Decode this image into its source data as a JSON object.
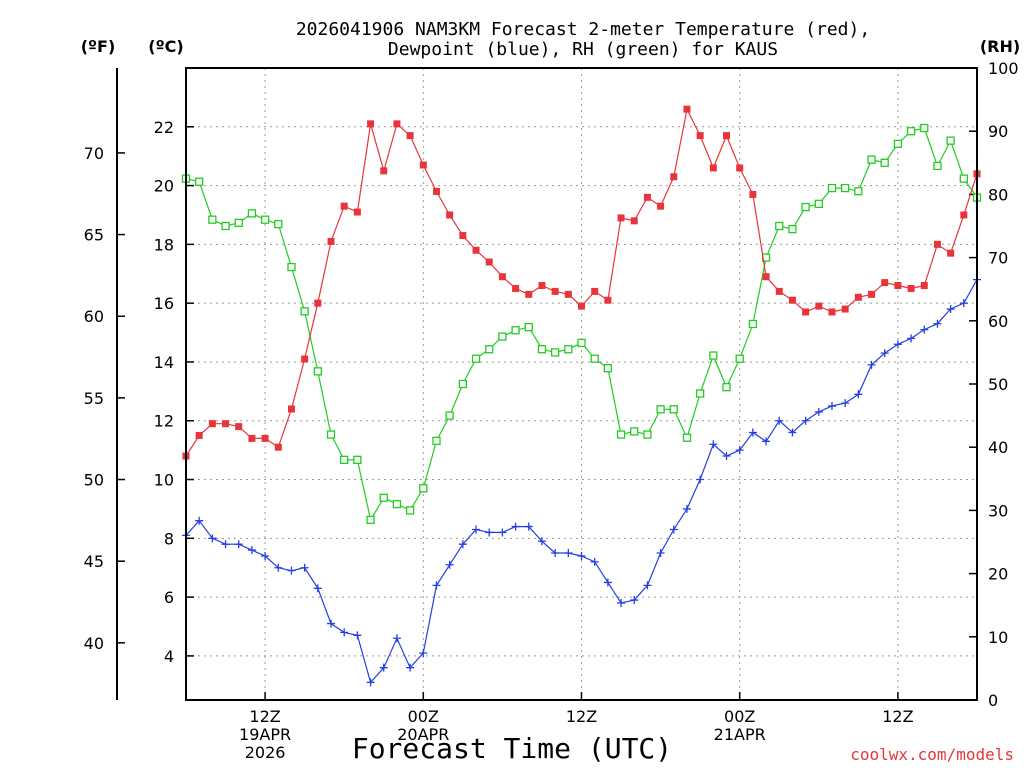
{
  "chart_data": {
    "type": "line",
    "title_line1": "2026041906 NAM3KM Forecast 2-meter Temperature (red),",
    "title_line2": "Dewpoint (blue), RH (green) for KAUS",
    "xlabel": "Forecast Time (UTC)",
    "credit": "coolwx.com/models",
    "units": {
      "fahrenheit": "(ºF)",
      "celsius": "(ºC)",
      "rh": "(RH)"
    },
    "x_range_hours": [
      0,
      60
    ],
    "celsius_range": [
      2.5,
      24.0
    ],
    "rh_range": [
      0,
      100
    ],
    "celsius_ticks": [
      4,
      6,
      8,
      10,
      12,
      14,
      16,
      18,
      20,
      22
    ],
    "fahrenheit_ticks": [
      40,
      45,
      50,
      55,
      60,
      65,
      70
    ],
    "rh_ticks": [
      0,
      10,
      20,
      30,
      40,
      50,
      60,
      70,
      80,
      90,
      100
    ],
    "x_ticks": [
      {
        "hour": 6,
        "lines": [
          "12Z",
          "19APR",
          "2026"
        ]
      },
      {
        "hour": 18,
        "lines": [
          "00Z",
          "20APR"
        ]
      },
      {
        "hour": 30,
        "lines": [
          "12Z"
        ]
      },
      {
        "hour": 42,
        "lines": [
          "00Z",
          "21APR"
        ]
      },
      {
        "hour": 54,
        "lines": [
          "12Z"
        ]
      }
    ],
    "hours": [
      0,
      1,
      2,
      3,
      4,
      5,
      6,
      7,
      8,
      9,
      10,
      11,
      12,
      13,
      14,
      15,
      16,
      17,
      18,
      19,
      20,
      21,
      22,
      23,
      24,
      25,
      26,
      27,
      28,
      29,
      30,
      31,
      32,
      33,
      34,
      35,
      36,
      37,
      38,
      39,
      40,
      41,
      42,
      43,
      44,
      45,
      46,
      47,
      48,
      49,
      50,
      51,
      52,
      53,
      54,
      55,
      56,
      57,
      58,
      59,
      60
    ],
    "series": [
      {
        "name": "2-meter Temperature",
        "color": "#e8353a",
        "axis": "celsius",
        "marker": "filled-square",
        "values": [
          10.8,
          11.5,
          11.9,
          11.9,
          11.8,
          11.4,
          11.4,
          11.1,
          12.4,
          14.1,
          16.0,
          18.1,
          19.3,
          19.1,
          22.1,
          20.5,
          22.1,
          21.7,
          20.7,
          19.8,
          19.0,
          18.3,
          17.8,
          17.4,
          16.9,
          16.5,
          16.3,
          16.6,
          16.4,
          16.3,
          15.9,
          16.4,
          16.1,
          18.9,
          18.8,
          19.6,
          19.3,
          20.3,
          22.6,
          21.7,
          20.6,
          21.7,
          20.6,
          19.7,
          16.9,
          16.4,
          16.1,
          15.7,
          15.9,
          15.7,
          15.8,
          16.2,
          16.3,
          16.7,
          16.6,
          16.5,
          16.6,
          18.0,
          17.7,
          19.0,
          20.4
        ]
      },
      {
        "name": "Dewpoint",
        "color": "#2440e0",
        "axis": "celsius",
        "marker": "plus",
        "values": [
          8.1,
          8.6,
          8.0,
          7.8,
          7.8,
          7.6,
          7.4,
          7.0,
          6.9,
          7.0,
          6.3,
          5.1,
          4.8,
          4.7,
          3.1,
          3.6,
          4.6,
          3.6,
          4.1,
          6.4,
          7.1,
          7.8,
          8.3,
          8.2,
          8.2,
          8.4,
          8.4,
          7.9,
          7.5,
          7.5,
          7.4,
          7.2,
          6.5,
          5.8,
          5.9,
          6.4,
          7.5,
          8.3,
          9.0,
          10.0,
          11.2,
          10.8,
          11.0,
          11.6,
          11.3,
          12.0,
          11.6,
          12.0,
          12.3,
          12.5,
          12.6,
          12.9,
          13.9,
          14.3,
          14.6,
          14.8,
          15.1,
          15.3,
          15.8,
          16.0,
          16.8
        ]
      },
      {
        "name": "Relative Humidity",
        "color": "#22cc22",
        "axis": "rh",
        "marker": "open-square",
        "values": [
          82.5,
          82.0,
          76.0,
          75.0,
          75.5,
          77.0,
          76.0,
          75.3,
          68.5,
          61.5,
          52.0,
          42.0,
          38.0,
          38.0,
          28.5,
          32.0,
          31.0,
          30.0,
          33.5,
          41.0,
          45.0,
          50.0,
          54.0,
          55.5,
          57.5,
          58.5,
          59.0,
          55.5,
          55.0,
          55.5,
          56.5,
          54.0,
          52.5,
          42.0,
          42.5,
          42.0,
          46.0,
          46.0,
          41.5,
          48.5,
          54.5,
          49.5,
          54.0,
          59.5,
          70.0,
          75.0,
          74.5,
          78.0,
          78.5,
          81.0,
          81.0,
          80.5,
          85.5,
          85.0,
          88.0,
          90.0,
          90.5,
          84.5,
          88.5,
          82.5,
          79.5
        ]
      }
    ]
  }
}
